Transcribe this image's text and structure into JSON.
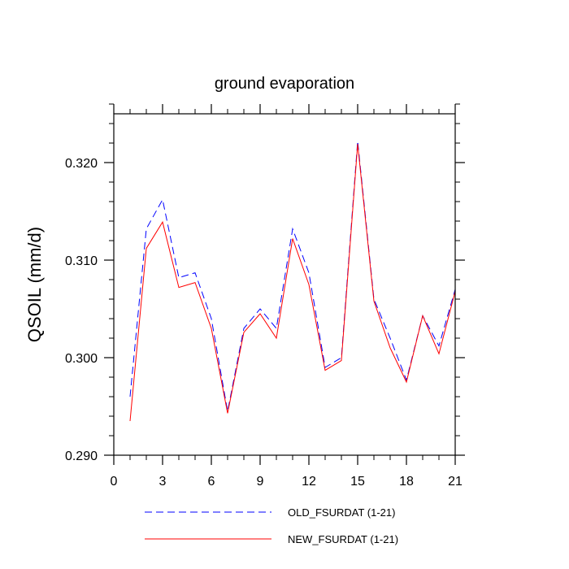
{
  "chart_data": {
    "type": "line",
    "title": "ground evaporation",
    "xlabel": "",
    "ylabel": "QSOIL  (mm/d)",
    "xlim": [
      0,
      21
    ],
    "ylim": [
      0.29,
      0.325
    ],
    "x_ticks": [
      0,
      3,
      6,
      9,
      12,
      15,
      18,
      21
    ],
    "x_tick_labels": [
      "0",
      "3",
      "6",
      "9",
      "12",
      "15",
      "18",
      "21"
    ],
    "y_ticks": [
      0.29,
      0.3,
      0.31,
      0.32
    ],
    "y_tick_labels": [
      "0.290",
      "0.300",
      "0.310",
      "0.320"
    ],
    "grid": false,
    "legend_position": "bottom",
    "x": [
      1,
      2,
      3,
      4,
      5,
      6,
      7,
      8,
      9,
      10,
      11,
      12,
      13,
      14,
      15,
      16,
      17,
      18,
      19,
      20,
      21
    ],
    "series": [
      {
        "name": "OLD_FSURDAT (1-21)",
        "color": "#0000ff",
        "dash": "dashed",
        "values": [
          0.296,
          0.3132,
          0.3162,
          0.3082,
          0.3087,
          0.304,
          0.2945,
          0.303,
          0.305,
          0.303,
          0.3132,
          0.3087,
          0.299,
          0.3,
          0.3222,
          0.306,
          0.302,
          0.2977,
          0.3043,
          0.3012,
          0.307
        ]
      },
      {
        "name": "NEW_FSURDAT (1-21)",
        "color": "#ff0000",
        "dash": "solid",
        "values": [
          0.2935,
          0.3112,
          0.3139,
          0.3072,
          0.3077,
          0.303,
          0.2943,
          0.3026,
          0.3045,
          0.302,
          0.3122,
          0.3075,
          0.2987,
          0.2997,
          0.3219,
          0.3058,
          0.301,
          0.2975,
          0.3043,
          0.3004,
          0.3068
        ]
      }
    ]
  }
}
